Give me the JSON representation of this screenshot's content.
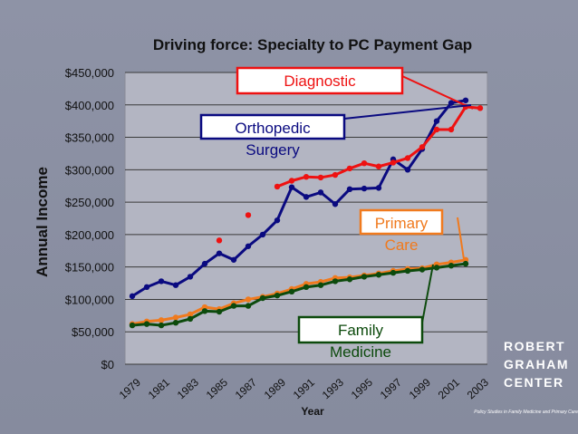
{
  "chart_data": {
    "type": "line",
    "title": "Driving force: Specialty to PC Payment Gap",
    "xlabel": "Year",
    "ylabel": "Annual Income",
    "ylim": [
      0,
      450000
    ],
    "yticks": [
      "$0",
      "$50,000",
      "$100,000",
      "$150,000",
      "$200,000",
      "$250,000",
      "$300,000",
      "$350,000",
      "$400,000",
      "$450,000"
    ],
    "xticks": [
      "1979",
      "1981",
      "1983",
      "1985",
      "1987",
      "1989",
      "1991",
      "1993",
      "1995",
      "1997",
      "1999",
      "2001",
      "2003"
    ],
    "grid": true,
    "series": [
      {
        "name": "Orthopedic Surgery",
        "color": "#0a0a80",
        "x": [
          1979,
          1980,
          1981,
          1982,
          1983,
          1984,
          1985,
          1986,
          1987,
          1988,
          1989,
          1990,
          1991,
          1992,
          1993,
          1994,
          1995,
          1996,
          1997,
          1998,
          1999,
          2000,
          2001,
          2002
        ],
        "values": [
          105000,
          119000,
          128000,
          122000,
          135000,
          155000,
          171000,
          161000,
          182000,
          200000,
          222000,
          273000,
          258000,
          265000,
          247000,
          270000,
          271000,
          272000,
          316000,
          300000,
          332000,
          375000,
          403000,
          407000
        ]
      },
      {
        "name": "Diagnostic",
        "color": "#ee1111",
        "x": [
          1985,
          1987,
          1989,
          1990,
          1991,
          1992,
          1993,
          1994,
          1995,
          1996,
          1997,
          1998,
          1999,
          2000,
          2001,
          2002,
          2003
        ],
        "values": [
          191000,
          230000,
          274000,
          283000,
          289000,
          288000,
          292000,
          302000,
          310000,
          305000,
          311000,
          318000,
          335000,
          362000,
          362000,
          397000,
          395000
        ],
        "connected_from": 1989
      },
      {
        "name": "Primary Care",
        "color": "#f07a1e",
        "x": [
          1979,
          1980,
          1981,
          1982,
          1983,
          1984,
          1985,
          1986,
          1987,
          1988,
          1989,
          1990,
          1991,
          1992,
          1993,
          1994,
          1995,
          1996,
          1997,
          1998,
          1999,
          2000,
          2001,
          2002
        ],
        "values": [
          62000,
          66000,
          68000,
          72000,
          77000,
          88000,
          85000,
          94000,
          100000,
          104000,
          109000,
          116000,
          124000,
          127000,
          133000,
          134000,
          137000,
          140000,
          144000,
          147000,
          148000,
          154000,
          157000,
          161000
        ]
      },
      {
        "name": "Family Medicine",
        "color": "#0c4a0c",
        "x": [
          1979,
          1980,
          1981,
          1982,
          1983,
          1984,
          1985,
          1986,
          1987,
          1988,
          1989,
          1990,
          1991,
          1992,
          1993,
          1994,
          1995,
          1996,
          1997,
          1998,
          1999,
          2000,
          2001,
          2002
        ],
        "values": [
          60000,
          62000,
          60000,
          64000,
          70000,
          82000,
          81000,
          90000,
          90000,
          102000,
          106000,
          112000,
          119000,
          122000,
          128000,
          131000,
          135000,
          138000,
          141000,
          144000,
          146000,
          149000,
          152000,
          155000
        ]
      }
    ],
    "annotations": [
      {
        "text": "Diagnostic",
        "series": "Diagnostic",
        "color": "#ee1111"
      },
      {
        "text_lines": [
          "Orthopedic",
          "Surgery"
        ],
        "series": "Orthopedic Surgery",
        "color": "#0a0a80"
      },
      {
        "text_lines": [
          "Primary",
          "Care"
        ],
        "series": "Primary Care",
        "color": "#f07a1e"
      },
      {
        "text_lines": [
          "Family",
          "Medicine"
        ],
        "series": "Family Medicine",
        "color": "#0c4a0c"
      }
    ]
  },
  "logo": {
    "lines": [
      "ROBERT",
      "GRAHAM",
      "CENTER"
    ],
    "tagline": "Policy Studies in Family Medicine and Primary Care"
  }
}
